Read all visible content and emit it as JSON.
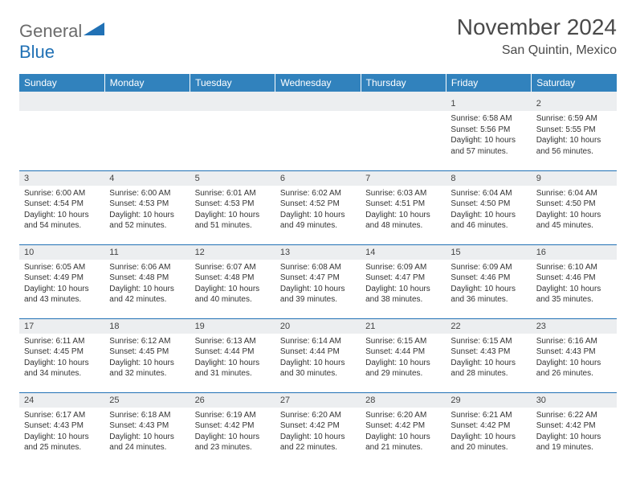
{
  "brand": {
    "part1": "General",
    "part2": "Blue"
  },
  "title": "November 2024",
  "location": "San Quintin, Mexico",
  "weekdays": [
    "Sunday",
    "Monday",
    "Tuesday",
    "Wednesday",
    "Thursday",
    "Friday",
    "Saturday"
  ],
  "colors": {
    "header_bg": "#3182bd",
    "header_text": "#ffffff",
    "daynum_bg": "#eceef0",
    "row_border": "#2171b5",
    "text": "#333333",
    "brand_gray": "#6b6b6b",
    "brand_blue": "#2171b5"
  },
  "first_weekday_index": 5,
  "days": [
    {
      "n": 1,
      "sunrise": "6:58 AM",
      "sunset": "5:56 PM",
      "daylight": "10 hours and 57 minutes."
    },
    {
      "n": 2,
      "sunrise": "6:59 AM",
      "sunset": "5:55 PM",
      "daylight": "10 hours and 56 minutes."
    },
    {
      "n": 3,
      "sunrise": "6:00 AM",
      "sunset": "4:54 PM",
      "daylight": "10 hours and 54 minutes."
    },
    {
      "n": 4,
      "sunrise": "6:00 AM",
      "sunset": "4:53 PM",
      "daylight": "10 hours and 52 minutes."
    },
    {
      "n": 5,
      "sunrise": "6:01 AM",
      "sunset": "4:53 PM",
      "daylight": "10 hours and 51 minutes."
    },
    {
      "n": 6,
      "sunrise": "6:02 AM",
      "sunset": "4:52 PM",
      "daylight": "10 hours and 49 minutes."
    },
    {
      "n": 7,
      "sunrise": "6:03 AM",
      "sunset": "4:51 PM",
      "daylight": "10 hours and 48 minutes."
    },
    {
      "n": 8,
      "sunrise": "6:04 AM",
      "sunset": "4:50 PM",
      "daylight": "10 hours and 46 minutes."
    },
    {
      "n": 9,
      "sunrise": "6:04 AM",
      "sunset": "4:50 PM",
      "daylight": "10 hours and 45 minutes."
    },
    {
      "n": 10,
      "sunrise": "6:05 AM",
      "sunset": "4:49 PM",
      "daylight": "10 hours and 43 minutes."
    },
    {
      "n": 11,
      "sunrise": "6:06 AM",
      "sunset": "4:48 PM",
      "daylight": "10 hours and 42 minutes."
    },
    {
      "n": 12,
      "sunrise": "6:07 AM",
      "sunset": "4:48 PM",
      "daylight": "10 hours and 40 minutes."
    },
    {
      "n": 13,
      "sunrise": "6:08 AM",
      "sunset": "4:47 PM",
      "daylight": "10 hours and 39 minutes."
    },
    {
      "n": 14,
      "sunrise": "6:09 AM",
      "sunset": "4:47 PM",
      "daylight": "10 hours and 38 minutes."
    },
    {
      "n": 15,
      "sunrise": "6:09 AM",
      "sunset": "4:46 PM",
      "daylight": "10 hours and 36 minutes."
    },
    {
      "n": 16,
      "sunrise": "6:10 AM",
      "sunset": "4:46 PM",
      "daylight": "10 hours and 35 minutes."
    },
    {
      "n": 17,
      "sunrise": "6:11 AM",
      "sunset": "4:45 PM",
      "daylight": "10 hours and 34 minutes."
    },
    {
      "n": 18,
      "sunrise": "6:12 AM",
      "sunset": "4:45 PM",
      "daylight": "10 hours and 32 minutes."
    },
    {
      "n": 19,
      "sunrise": "6:13 AM",
      "sunset": "4:44 PM",
      "daylight": "10 hours and 31 minutes."
    },
    {
      "n": 20,
      "sunrise": "6:14 AM",
      "sunset": "4:44 PM",
      "daylight": "10 hours and 30 minutes."
    },
    {
      "n": 21,
      "sunrise": "6:15 AM",
      "sunset": "4:44 PM",
      "daylight": "10 hours and 29 minutes."
    },
    {
      "n": 22,
      "sunrise": "6:15 AM",
      "sunset": "4:43 PM",
      "daylight": "10 hours and 28 minutes."
    },
    {
      "n": 23,
      "sunrise": "6:16 AM",
      "sunset": "4:43 PM",
      "daylight": "10 hours and 26 minutes."
    },
    {
      "n": 24,
      "sunrise": "6:17 AM",
      "sunset": "4:43 PM",
      "daylight": "10 hours and 25 minutes."
    },
    {
      "n": 25,
      "sunrise": "6:18 AM",
      "sunset": "4:43 PM",
      "daylight": "10 hours and 24 minutes."
    },
    {
      "n": 26,
      "sunrise": "6:19 AM",
      "sunset": "4:42 PM",
      "daylight": "10 hours and 23 minutes."
    },
    {
      "n": 27,
      "sunrise": "6:20 AM",
      "sunset": "4:42 PM",
      "daylight": "10 hours and 22 minutes."
    },
    {
      "n": 28,
      "sunrise": "6:20 AM",
      "sunset": "4:42 PM",
      "daylight": "10 hours and 21 minutes."
    },
    {
      "n": 29,
      "sunrise": "6:21 AM",
      "sunset": "4:42 PM",
      "daylight": "10 hours and 20 minutes."
    },
    {
      "n": 30,
      "sunrise": "6:22 AM",
      "sunset": "4:42 PM",
      "daylight": "10 hours and 19 minutes."
    }
  ],
  "labels": {
    "sunrise": "Sunrise:",
    "sunset": "Sunset:",
    "daylight": "Daylight:"
  }
}
